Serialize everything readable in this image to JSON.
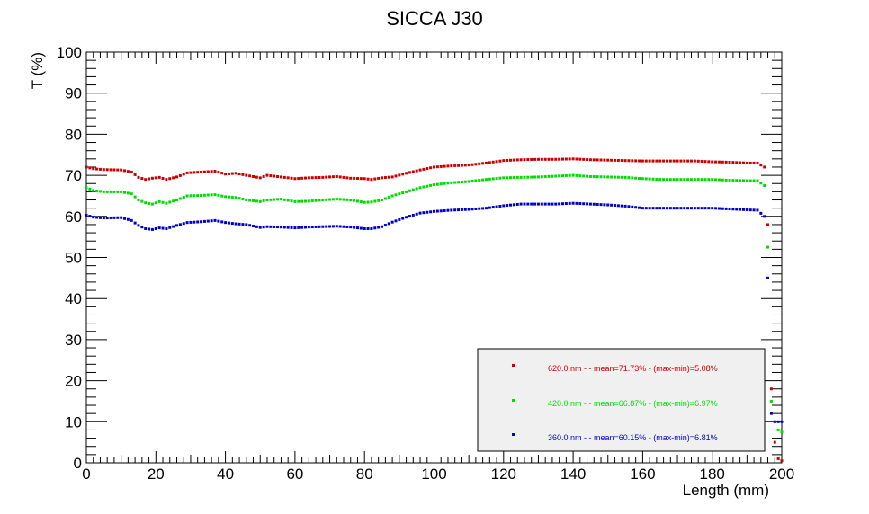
{
  "chart_data": {
    "type": "scatter",
    "title": "SICCA J30",
    "xlabel": "Length (mm)",
    "ylabel": "T (%)",
    "xlim": [
      0,
      200
    ],
    "ylim": [
      0,
      100
    ],
    "x_ticks": [
      0,
      20,
      40,
      60,
      80,
      100,
      120,
      140,
      160,
      180,
      200
    ],
    "y_ticks": [
      0,
      10,
      20,
      30,
      40,
      50,
      60,
      70,
      80,
      90,
      100
    ],
    "grid": false,
    "legend_position": "bottom-right",
    "anchors_x": [
      0,
      2,
      5,
      10,
      13,
      15,
      17,
      19,
      21,
      23,
      26,
      29,
      33,
      37,
      40,
      43,
      46,
      50,
      52,
      56,
      60,
      64,
      68,
      72,
      76,
      80,
      82,
      85,
      88,
      92,
      96,
      100,
      105,
      110,
      115,
      120,
      125,
      130,
      135,
      140,
      145,
      150,
      155,
      160,
      165,
      170,
      175,
      180,
      185,
      190,
      193,
      195,
      196,
      197,
      198,
      199,
      200
    ],
    "series": [
      {
        "name": "620.0 nm",
        "legend_label": "620.0 nm -  - mean=71.73% - (max-min)=5.08%",
        "color": "#cc0000",
        "anchors_y": [
          72.0,
          71.6,
          71.4,
          71.3,
          70.8,
          69.5,
          69.0,
          69.3,
          69.5,
          69.0,
          69.6,
          70.6,
          70.8,
          71.0,
          70.3,
          70.5,
          70.0,
          69.4,
          70.0,
          69.6,
          69.2,
          69.4,
          69.5,
          69.7,
          69.3,
          69.2,
          69.0,
          69.4,
          69.6,
          70.5,
          71.3,
          72.0,
          72.3,
          72.5,
          73.0,
          73.6,
          73.8,
          73.9,
          73.9,
          74.0,
          73.8,
          73.7,
          73.6,
          73.5,
          73.5,
          73.5,
          73.5,
          73.3,
          73.2,
          73.0,
          73.0,
          72.0,
          58.0,
          18.0,
          5.0,
          1.0,
          0.5
        ]
      },
      {
        "name": "420.0 nm",
        "legend_label": "420.0 nm -  - mean=66.87% - (max-min)=6.97%",
        "color": "#00dd00",
        "anchors_y": [
          67.0,
          66.3,
          66.0,
          66.0,
          65.5,
          64.0,
          63.3,
          63.0,
          63.6,
          63.2,
          64.0,
          65.0,
          65.1,
          65.3,
          64.8,
          64.6,
          64.0,
          63.6,
          64.0,
          64.2,
          63.6,
          63.7,
          64.0,
          64.2,
          64.0,
          63.4,
          63.5,
          64.0,
          65.0,
          66.0,
          67.0,
          67.7,
          68.2,
          68.5,
          69.0,
          69.4,
          69.5,
          69.6,
          69.8,
          70.0,
          69.7,
          69.6,
          69.5,
          69.2,
          69.0,
          69.0,
          69.0,
          69.0,
          68.8,
          68.7,
          68.7,
          67.5,
          52.5,
          15.0,
          10.0,
          8.0,
          7.5
        ]
      },
      {
        "name": "360.0 nm",
        "legend_label": "360.0 nm -  - mean=60.15% - (max-min)=6.81%",
        "color": "#0000cc",
        "anchors_y": [
          60.3,
          59.8,
          59.6,
          59.7,
          59.0,
          57.8,
          57.0,
          56.8,
          57.2,
          57.0,
          57.8,
          58.5,
          58.7,
          59.0,
          58.5,
          58.2,
          58.0,
          57.3,
          57.5,
          57.4,
          57.2,
          57.4,
          57.5,
          57.6,
          57.4,
          57.0,
          57.0,
          57.5,
          58.6,
          59.8,
          60.8,
          61.2,
          61.5,
          61.7,
          62.0,
          62.6,
          63.0,
          63.0,
          63.0,
          63.2,
          63.0,
          62.8,
          62.5,
          62.0,
          62.0,
          62.0,
          62.0,
          62.0,
          61.8,
          61.6,
          61.5,
          60.0,
          45.0,
          12.0,
          10.0,
          10.0,
          10.0
        ]
      }
    ]
  }
}
